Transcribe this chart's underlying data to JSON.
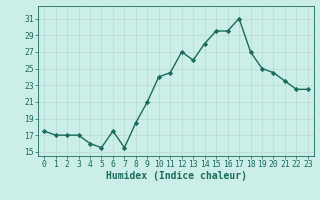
{
  "x": [
    0,
    1,
    2,
    3,
    4,
    5,
    6,
    7,
    8,
    9,
    10,
    11,
    12,
    13,
    14,
    15,
    16,
    17,
    18,
    19,
    20,
    21,
    22,
    23
  ],
  "y": [
    17.5,
    17.0,
    17.0,
    17.0,
    16.0,
    15.5,
    17.5,
    15.5,
    18.5,
    21.0,
    24.0,
    24.5,
    27.0,
    26.0,
    28.0,
    29.5,
    29.5,
    31.0,
    27.0,
    25.0,
    24.5,
    23.5,
    22.5,
    22.5
  ],
  "line_color": "#1a6b5a",
  "bg_color": "#cceee8",
  "grid_color": "#b8d8d4",
  "xlabel": "Humidex (Indice chaleur)",
  "ylim": [
    14.5,
    32.5
  ],
  "yticks": [
    15,
    17,
    19,
    21,
    23,
    25,
    27,
    29,
    31
  ],
  "xticks": [
    0,
    1,
    2,
    3,
    4,
    5,
    6,
    7,
    8,
    9,
    10,
    11,
    12,
    13,
    14,
    15,
    16,
    17,
    18,
    19,
    20,
    21,
    22,
    23
  ],
  "marker": "D",
  "markersize": 2.2,
  "linewidth": 1.0,
  "xlabel_fontsize": 7,
  "tick_fontsize": 5.8
}
